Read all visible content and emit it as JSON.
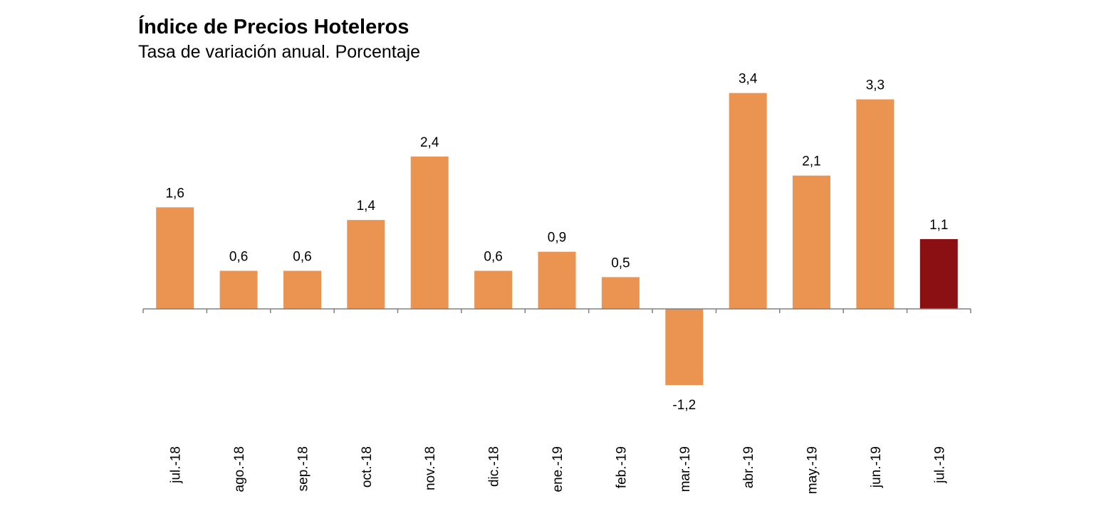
{
  "chart_data": {
    "type": "bar",
    "title": "Índice de Precios Hoteleros",
    "subtitle": "Tasa de variación anual. Porcentaje",
    "xlabel": "",
    "ylabel": "",
    "categories": [
      "jul.-18",
      "ago.-18",
      "sep.-18",
      "oct.-18",
      "nov.-18",
      "dic.-18",
      "ene.-19",
      "feb.-19",
      "mar.-19",
      "abr.-19",
      "may.-19",
      "jun.-19",
      "jul.-19"
    ],
    "values": [
      1.6,
      0.6,
      0.6,
      1.4,
      2.4,
      0.6,
      0.9,
      0.5,
      -1.2,
      3.4,
      2.1,
      3.3,
      1.1
    ],
    "value_labels": [
      "1,6",
      "0,6",
      "0,6",
      "1,4",
      "2,4",
      "0,6",
      "0,9",
      "0,5",
      "-1,2",
      "3,4",
      "2,1",
      "3,3",
      "1,1"
    ],
    "ylim": [
      -1.2,
      3.4
    ],
    "grid": false,
    "legend": "none",
    "colors": {
      "bar": "#eb9350",
      "highlight": "#8a1014",
      "axis": "#808080"
    },
    "highlight_index": 12
  }
}
